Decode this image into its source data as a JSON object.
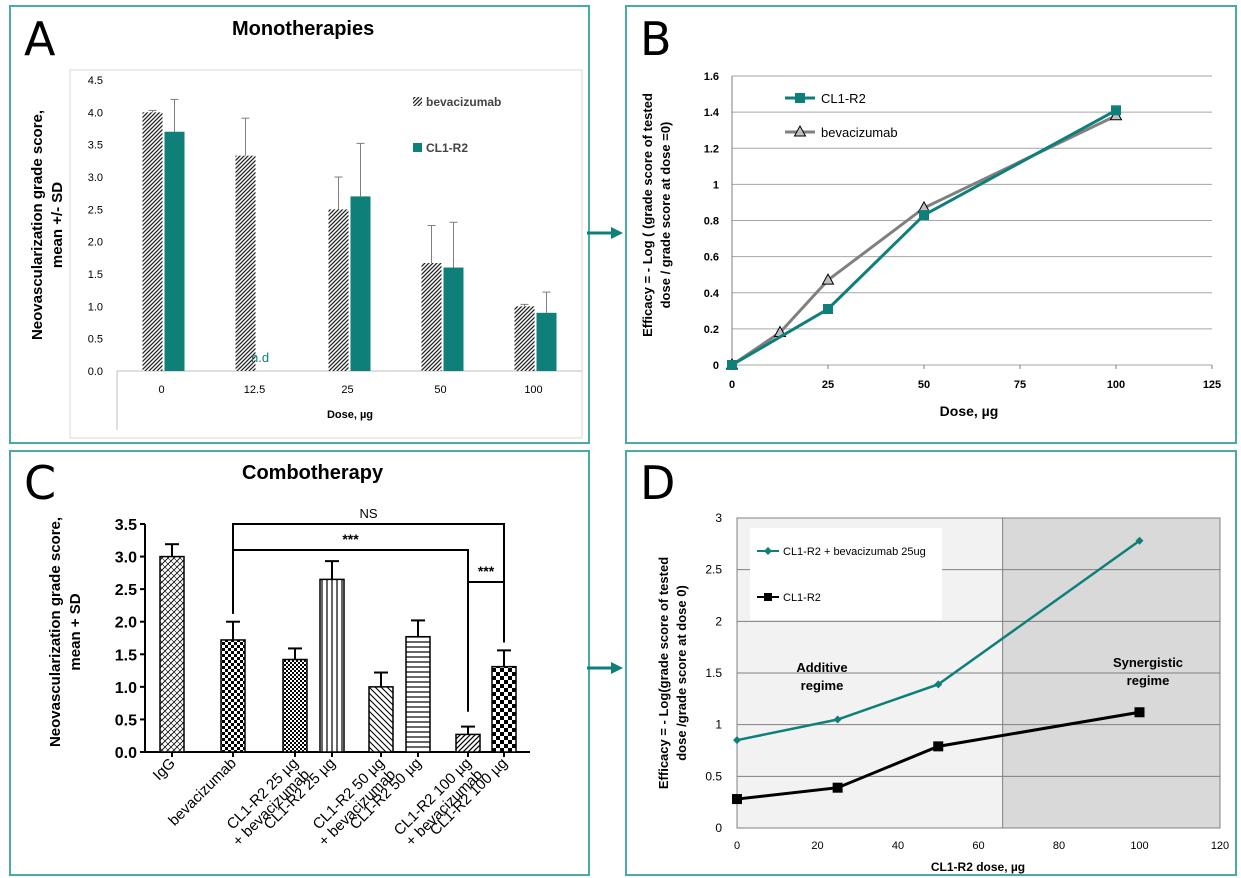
{
  "colors": {
    "teal": "#0f7f7a",
    "grey": "#808080",
    "black": "#000000",
    "frame": "#4aaba5"
  },
  "panels": {
    "A": {
      "label": "A",
      "title": "Monotherapies"
    },
    "B": {
      "label": "B"
    },
    "C": {
      "label": "C",
      "title": "Combotherapy"
    },
    "D": {
      "label": "D"
    }
  },
  "chart_data": [
    {
      "id": "A",
      "type": "bar",
      "title": "Monotherapies",
      "xlabel": "Dose, µg",
      "ylabel": "Neovascularization grade score, mean +/- SD",
      "ylim": [
        0,
        4.5
      ],
      "yticks": [
        "0.0",
        "0.5",
        "1.0",
        "1.5",
        "2.0",
        "2.5",
        "3.0",
        "3.5",
        "4.0",
        "4.5"
      ],
      "categories": [
        "0",
        "12.5",
        "25",
        "50",
        "100"
      ],
      "series": [
        {
          "name": "bevacizumab",
          "values": [
            4.0,
            3.33,
            2.5,
            1.67,
            1.0
          ],
          "sd": [
            0.03,
            0.58,
            0.5,
            0.58,
            0.03
          ]
        },
        {
          "name": "CL1-R2",
          "values": [
            3.7,
            null,
            2.7,
            1.6,
            0.9
          ],
          "sd": [
            0.5,
            null,
            0.82,
            0.7,
            0.32
          ]
        }
      ],
      "annotations": [
        {
          "text": "n.d"
        }
      ],
      "legend": "top-right",
      "grid": false
    },
    {
      "id": "B",
      "type": "line",
      "xlabel": "Dose, µg",
      "ylabel_lines": [
        "Efficacy = - Log ( (grade score of tested",
        "dose / grade score at dose =0)"
      ],
      "xlim": [
        0,
        125
      ],
      "ylim": [
        0,
        1.6
      ],
      "xticks": [
        "0",
        "25",
        "50",
        "75",
        "100",
        "125"
      ],
      "yticks": [
        "0",
        "0.2",
        "0.4",
        "0.6",
        "0.8",
        "1",
        "1.2",
        "1.4",
        "1.6"
      ],
      "series": [
        {
          "name": "CL1-R2",
          "x": [
            0,
            25,
            50,
            100
          ],
          "y": [
            0,
            0.31,
            0.83,
            1.41
          ]
        },
        {
          "name": "bevacizumab",
          "x": [
            0,
            12.5,
            25,
            50,
            100
          ],
          "y": [
            0,
            0.18,
            0.47,
            0.87,
            1.38
          ]
        }
      ],
      "legend": "top-left",
      "grid": true
    },
    {
      "id": "C",
      "type": "bar",
      "title": "Combotherapy",
      "ylabel": "Neovascularization grade score, mean + SD",
      "ylim": [
        0,
        3.5
      ],
      "yticks": [
        "0.0",
        "0.5",
        "1.0",
        "1.5",
        "2.0",
        "2.5",
        "3.0",
        "3.5"
      ],
      "categories": [
        "IgG",
        "bevacizumab",
        "CL1-R2 25 µg\n+ bevacizumab",
        "CL1-R2 25 µg",
        "CL1-R2 50 µg\n+ bevacizumab",
        "CL1-R2 50 µg",
        "CL1-R2 100 µg\n+ bevacizumab",
        "CL1-R2 100 µg"
      ],
      "values": [
        3.0,
        1.72,
        1.42,
        2.65,
        1.0,
        1.77,
        0.27,
        1.31
      ],
      "sd": [
        0.19,
        0.28,
        0.17,
        0.28,
        0.22,
        0.25,
        0.12,
        0.25
      ],
      "significance": [
        {
          "from": 1,
          "to": 7,
          "text": "NS"
        },
        {
          "from": 1,
          "to": 6,
          "text": "***"
        },
        {
          "from": 6,
          "to": 7,
          "text": "***"
        }
      ],
      "grid": false
    },
    {
      "id": "D",
      "type": "line",
      "xlabel": "CL1-R2 dose, µg",
      "ylabel_lines": [
        "Efficacy = - Log(grade score of tested",
        "dose /grade score at dose 0)"
      ],
      "xlim": [
        0,
        120
      ],
      "ylim": [
        0,
        3
      ],
      "xticks": [
        "0",
        "20",
        "40",
        "60",
        "80",
        "100",
        "120"
      ],
      "yticks": [
        "0",
        "0.5",
        "1",
        "1.5",
        "2",
        "2.5",
        "3"
      ],
      "series": [
        {
          "name": "CL1-R2 + bevacizumab 25ug",
          "x": [
            0,
            25,
            50,
            100
          ],
          "y": [
            0.85,
            1.05,
            1.39,
            2.78
          ]
        },
        {
          "name": "CL1-R2",
          "x": [
            0,
            25,
            50,
            100
          ],
          "y": [
            0.28,
            0.39,
            0.79,
            1.12
          ]
        }
      ],
      "regions": [
        {
          "x": [
            0,
            66
          ],
          "label": "Additive regime"
        },
        {
          "x": [
            66,
            120
          ],
          "label": "Synergistic regime"
        }
      ],
      "legend": "top-left",
      "grid": true
    }
  ]
}
